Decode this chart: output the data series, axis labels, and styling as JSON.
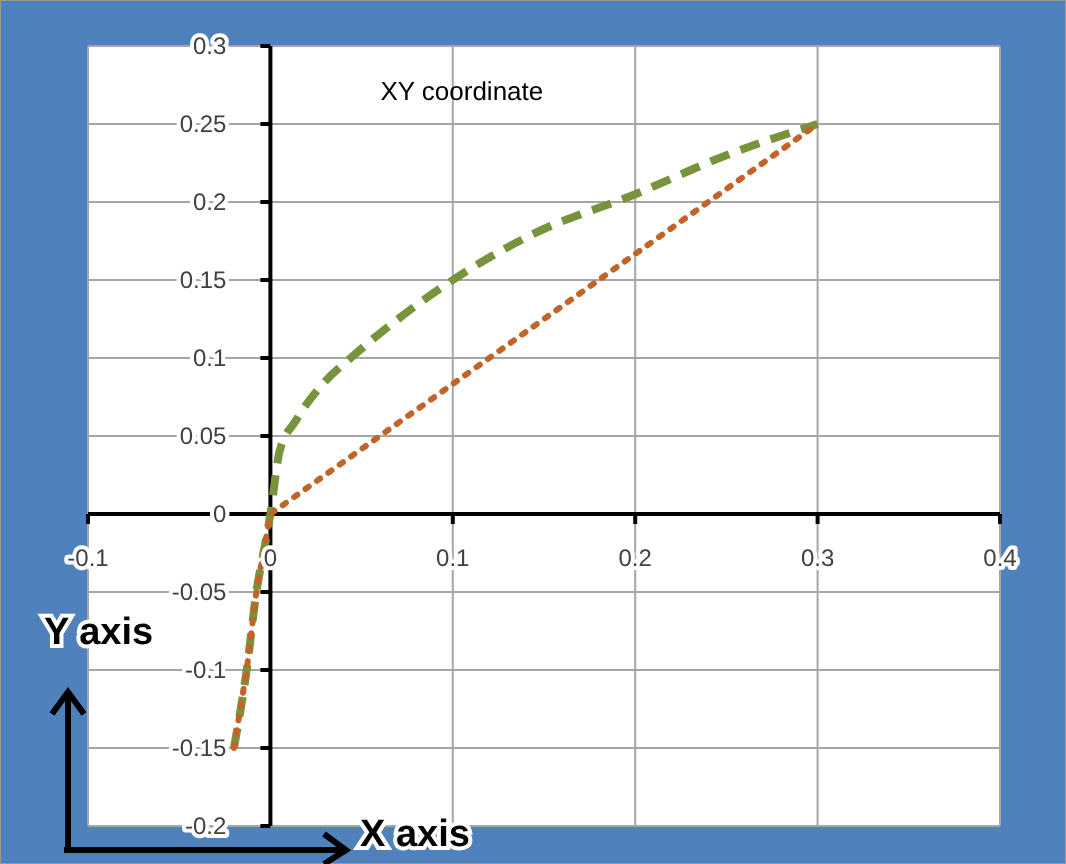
{
  "chart_data": {
    "type": "line",
    "title": "XY coordinate",
    "xlabel": "X axis",
    "ylabel": "Y axis",
    "series": [
      {
        "color": "#77933c",
        "line_style": "dashed",
        "x": [
          -0.02,
          -0.013,
          -0.0077,
          -0.003,
          0,
          0.005,
          0.014,
          0.03,
          0.044,
          0.07,
          0.1,
          0.145,
          0.2,
          0.25,
          0.3
        ],
        "values": [
          -0.15,
          -0.1,
          -0.05,
          -0.02,
          0,
          0.04,
          0.06,
          0.085,
          0.1,
          0.125,
          0.15,
          0.18,
          0.205,
          0.23,
          0.25
        ]
      },
      {
        "color": "#c0642a",
        "line_style": "dotted",
        "x": [
          -0.02,
          -0.013,
          -0.0077,
          0,
          0.3
        ],
        "values": [
          -0.15,
          -0.1,
          -0.05,
          0,
          0.25
        ]
      }
    ],
    "xlim": [
      -0.1,
      0.4
    ],
    "xticks": [
      -0.1,
      0,
      0.1,
      0.2,
      0.3,
      0.4
    ],
    "ylim": [
      -0.2,
      0.3
    ],
    "yticks": [
      -0.2,
      -0.15,
      -0.1,
      -0.05,
      0,
      0.05,
      0.1,
      0.15,
      0.2,
      0.25,
      0.3
    ],
    "grid": true,
    "marker": "none"
  }
}
